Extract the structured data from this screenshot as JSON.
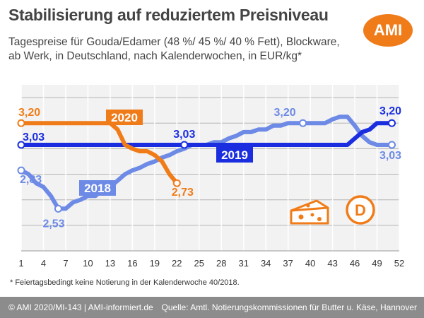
{
  "header": {
    "title": "Stabilisierung auf reduziertem Preisniveau",
    "subtitle": "Tagespreise für Gouda/Edamer (48 %/ 45 %/ 40 % Fett), Blockware, ab Werk, in Deutschland, nach Kalenderwochen, in EUR/kg*",
    "logo_text": "AMI",
    "badge_text": "D"
  },
  "footnote": "* Feiertagsbedingt keine Notierung in der Kalenderwoche 40/2018.",
  "footer": {
    "left": "© AMI 2020/MI-143 | AMI-informiert.de",
    "right": "Quelle: Amtl. Notierungskommissionen für Butter u. Käse, Hannover"
  },
  "colors": {
    "2020": "#f07c19",
    "2019": "#1a2ee0",
    "2018": "#6c8ae6",
    "accent": "#f07c19"
  },
  "icons": [
    "cheese-icon",
    "ami-logo"
  ],
  "chart_data": {
    "type": "line",
    "xlabel": "",
    "ylabel": "",
    "xlim": [
      1,
      52
    ],
    "ylim": [
      2.2,
      3.5
    ],
    "x_ticks": [
      1,
      4,
      7,
      10,
      13,
      16,
      19,
      22,
      25,
      28,
      31,
      34,
      37,
      40,
      43,
      46,
      49,
      52
    ],
    "grid": true,
    "series": [
      {
        "name": "2018",
        "color": "#6c8ae6",
        "points": [
          [
            1,
            2.83
          ],
          [
            2,
            2.8
          ],
          [
            3,
            2.73
          ],
          [
            4,
            2.7
          ],
          [
            5,
            2.63
          ],
          [
            6,
            2.53
          ],
          [
            7,
            2.53
          ],
          [
            8,
            2.58
          ],
          [
            9,
            2.6
          ],
          [
            10,
            2.63
          ],
          [
            11,
            2.63
          ],
          [
            12,
            2.68
          ],
          [
            13,
            2.7
          ],
          [
            14,
            2.75
          ],
          [
            15,
            2.8
          ],
          [
            16,
            2.83
          ],
          [
            17,
            2.85
          ],
          [
            18,
            2.88
          ],
          [
            19,
            2.9
          ],
          [
            20,
            2.93
          ],
          [
            21,
            2.95
          ],
          [
            22,
            2.98
          ],
          [
            23,
            3.0
          ],
          [
            24,
            3.03
          ],
          [
            25,
            3.03
          ],
          [
            26,
            3.03
          ],
          [
            27,
            3.05
          ],
          [
            28,
            3.05
          ],
          [
            29,
            3.08
          ],
          [
            30,
            3.1
          ],
          [
            31,
            3.13
          ],
          [
            32,
            3.13
          ],
          [
            33,
            3.15
          ],
          [
            34,
            3.15
          ],
          [
            35,
            3.18
          ],
          [
            36,
            3.18
          ],
          [
            37,
            3.2
          ],
          [
            38,
            3.2
          ],
          [
            39,
            3.2
          ],
          [
            41,
            3.2
          ],
          [
            42,
            3.2
          ],
          [
            43,
            3.23
          ],
          [
            44,
            3.25
          ],
          [
            45,
            3.25
          ],
          [
            46,
            3.18
          ],
          [
            47,
            3.1
          ],
          [
            48,
            3.05
          ],
          [
            49,
            3.03
          ],
          [
            50,
            3.03
          ],
          [
            51,
            3.03
          ]
        ],
        "labels": [
          {
            "week": 1,
            "value": "2,83"
          },
          {
            "week": 6,
            "value": "2,53"
          },
          {
            "week": 39,
            "value": "3,20"
          },
          {
            "week": 51,
            "value": "3,03"
          }
        ]
      },
      {
        "name": "2019",
        "color": "#1a2ee0",
        "points": [
          [
            1,
            3.03
          ],
          [
            2,
            3.03
          ],
          [
            3,
            3.03
          ],
          [
            4,
            3.03
          ],
          [
            5,
            3.03
          ],
          [
            6,
            3.03
          ],
          [
            7,
            3.03
          ],
          [
            8,
            3.03
          ],
          [
            9,
            3.03
          ],
          [
            10,
            3.03
          ],
          [
            11,
            3.03
          ],
          [
            12,
            3.03
          ],
          [
            13,
            3.03
          ],
          [
            14,
            3.03
          ],
          [
            15,
            3.03
          ],
          [
            16,
            3.03
          ],
          [
            17,
            3.03
          ],
          [
            18,
            3.03
          ],
          [
            19,
            3.03
          ],
          [
            20,
            3.03
          ],
          [
            21,
            3.03
          ],
          [
            22,
            3.03
          ],
          [
            23,
            3.03
          ],
          [
            24,
            3.03
          ],
          [
            25,
            3.03
          ],
          [
            26,
            3.03
          ],
          [
            27,
            3.03
          ],
          [
            28,
            3.03
          ],
          [
            29,
            3.03
          ],
          [
            30,
            3.03
          ],
          [
            31,
            3.03
          ],
          [
            32,
            3.03
          ],
          [
            33,
            3.03
          ],
          [
            34,
            3.03
          ],
          [
            35,
            3.03
          ],
          [
            36,
            3.03
          ],
          [
            37,
            3.03
          ],
          [
            38,
            3.03
          ],
          [
            39,
            3.03
          ],
          [
            40,
            3.03
          ],
          [
            41,
            3.03
          ],
          [
            42,
            3.03
          ],
          [
            43,
            3.03
          ],
          [
            44,
            3.03
          ],
          [
            45,
            3.03
          ],
          [
            46,
            3.08
          ],
          [
            47,
            3.13
          ],
          [
            48,
            3.15
          ],
          [
            49,
            3.2
          ],
          [
            50,
            3.2
          ],
          [
            51,
            3.2
          ]
        ],
        "labels": [
          {
            "week": 1,
            "value": "3,03"
          },
          {
            "week": 23,
            "value": "3,03"
          },
          {
            "week": 51,
            "value": "3,20"
          }
        ]
      },
      {
        "name": "2020",
        "color": "#f07c19",
        "points": [
          [
            1,
            3.2
          ],
          [
            2,
            3.2
          ],
          [
            3,
            3.2
          ],
          [
            4,
            3.2
          ],
          [
            5,
            3.2
          ],
          [
            6,
            3.2
          ],
          [
            7,
            3.2
          ],
          [
            8,
            3.2
          ],
          [
            9,
            3.2
          ],
          [
            10,
            3.2
          ],
          [
            11,
            3.2
          ],
          [
            12,
            3.2
          ],
          [
            13,
            3.2
          ],
          [
            14,
            3.15
          ],
          [
            15,
            3.03
          ],
          [
            16,
            3.0
          ],
          [
            17,
            2.98
          ],
          [
            18,
            2.98
          ],
          [
            19,
            2.95
          ],
          [
            20,
            2.9
          ],
          [
            21,
            2.8
          ],
          [
            22,
            2.73
          ]
        ],
        "labels": [
          {
            "week": 1,
            "value": "3,20"
          },
          {
            "week": 22,
            "value": "2,73"
          }
        ]
      }
    ]
  }
}
